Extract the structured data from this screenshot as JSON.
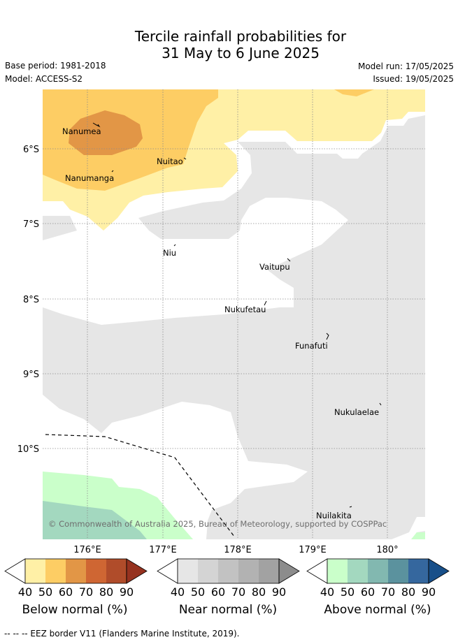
{
  "header": {
    "title_line1": "Tercile rainfall probabilities for",
    "title_line2": "31 May to 6 June 2025",
    "base_period": "Base period: 1981-2018",
    "model": "Model: ACCESS-S2",
    "model_run": "Model run: 17/05/2025",
    "issued": "Issued: 19/05/2025"
  },
  "map": {
    "lat_labels": [
      "6°S",
      "7°S",
      "8°S",
      "9°S",
      "10°S"
    ],
    "lon_labels": [
      "176°E",
      "177°E",
      "178°E",
      "179°E",
      "180°"
    ],
    "islands": [
      {
        "name": "Nanumea"
      },
      {
        "name": "Nuitao"
      },
      {
        "name": "Nanumanga"
      },
      {
        "name": "Niu"
      },
      {
        "name": "Vaitupu"
      },
      {
        "name": "Nukufetau"
      },
      {
        "name": "Funafuti"
      },
      {
        "name": "Nukulaelae"
      },
      {
        "name": "Nuilakita"
      }
    ],
    "copyright": "© Commonwealth of Australia 2025, Bureau of Meteorology, supported by COSPPac"
  },
  "colorbars": [
    {
      "title": "Below normal (%)",
      "ticks": [
        "40",
        "50",
        "60",
        "70",
        "80",
        "90"
      ],
      "colors": [
        "#fff0a6",
        "#fdcd64",
        "#e29646",
        "#cf6633",
        "#b04c2a",
        "#96321f"
      ]
    },
    {
      "title": "Near normal (%)",
      "ticks": [
        "40",
        "50",
        "60",
        "70",
        "80",
        "90"
      ],
      "colors": [
        "#e6e6e6",
        "#d4d4d4",
        "#c2c2c2",
        "#b2b2b2",
        "#a2a2a2",
        "#8c8c8c"
      ]
    },
    {
      "title": "Above normal (%)",
      "ticks": [
        "40",
        "50",
        "60",
        "70",
        "80",
        "90"
      ],
      "colors": [
        "#caffca",
        "#a3d8bf",
        "#82b8b0",
        "#5b929e",
        "#35679e",
        "#184f89"
      ]
    }
  ],
  "footer": {
    "eez_legend": "--  --  -- EEZ border V11 (Flanders Marine Institute, 2019)."
  }
}
